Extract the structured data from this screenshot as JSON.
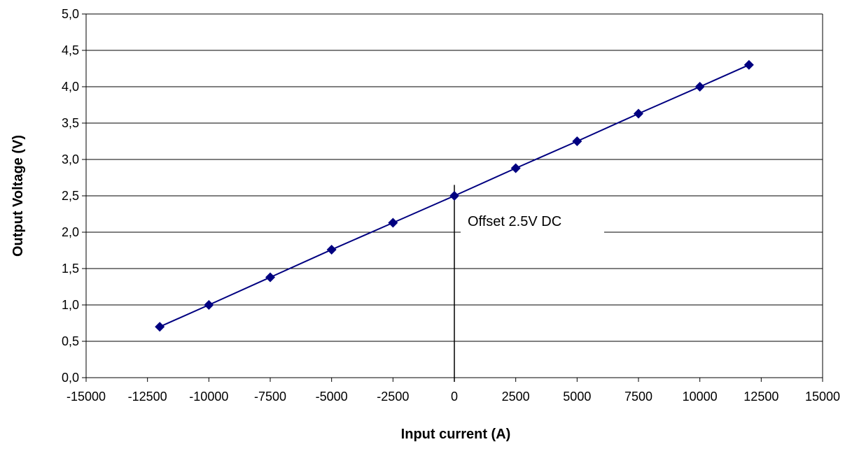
{
  "chart_data": {
    "type": "line",
    "title": "",
    "xlabel": "Input current (A)",
    "ylabel": "Output Voltage (V)",
    "xlim": [
      -15000,
      15000
    ],
    "ylim": [
      0,
      5
    ],
    "x_ticks": [
      -15000,
      -12500,
      -10000,
      -7500,
      -5000,
      -2500,
      0,
      2500,
      5000,
      7500,
      10000,
      12500,
      15000
    ],
    "x_tick_labels": [
      "-15000",
      "-12500",
      "-10000",
      "-7500",
      "-5000",
      "-2500",
      "0",
      "2500",
      "5000",
      "7500",
      "10000",
      "12500",
      "15000"
    ],
    "y_ticks": [
      0,
      0.5,
      1,
      1.5,
      2,
      2.5,
      3,
      3.5,
      4,
      4.5,
      5
    ],
    "y_tick_labels": [
      "0,0",
      "0,5",
      "1,0",
      "1,5",
      "2,0",
      "2,5",
      "3,0",
      "3,5",
      "4,0",
      "4,5",
      "5,0"
    ],
    "grid": "horizontal",
    "legend": "none",
    "series": [
      {
        "color": "#000080",
        "marker": "diamond",
        "x": [
          -12000,
          -10000,
          -7500,
          -5000,
          -2500,
          0,
          2500,
          5000,
          7500,
          10000,
          12000
        ],
        "y": [
          0.7,
          1.0,
          1.38,
          1.76,
          2.13,
          2.5,
          2.88,
          3.25,
          3.63,
          4.0,
          4.3
        ]
      }
    ],
    "annotation": {
      "text": "Offset 2.5V DC",
      "x": 0,
      "y_top": 2.65,
      "y_bottom": 0
    }
  }
}
